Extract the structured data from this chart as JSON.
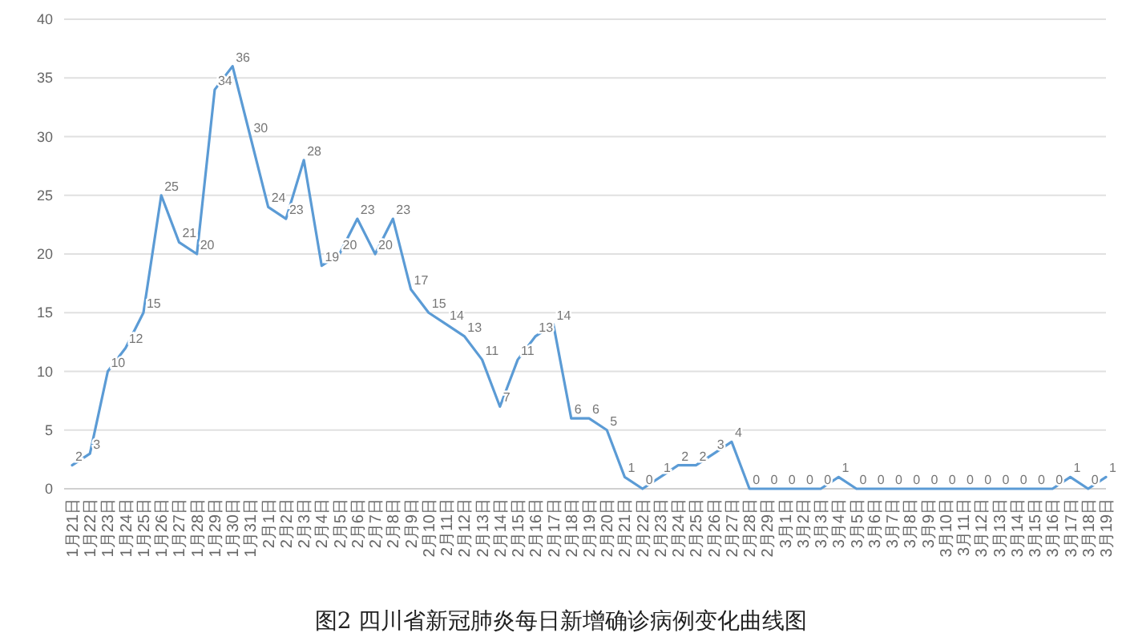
{
  "chart_data": {
    "type": "line",
    "title": "图2 四川省新冠肺炎每日新增确诊病例变化曲线图",
    "categories": [
      "1月21日",
      "1月22日",
      "1月23日",
      "1月24日",
      "1月25日",
      "1月26日",
      "1月27日",
      "1月28日",
      "1月29日",
      "1月30日",
      "1月31日",
      "2月1日",
      "2月2日",
      "2月3日",
      "2月4日",
      "2月5日",
      "2月6日",
      "2月7日",
      "2月8日",
      "2月9日",
      "2月10日",
      "2月11日",
      "2月12日",
      "2月13日",
      "2月14日",
      "2月15日",
      "2月16日",
      "2月17日",
      "2月18日",
      "2月19日",
      "2月20日",
      "2月21日",
      "2月22日",
      "2月23日",
      "2月24日",
      "2月25日",
      "2月26日",
      "2月27日",
      "2月28日",
      "2月29日",
      "3月1日",
      "3月2日",
      "3月3日",
      "3月4日",
      "3月5日",
      "3月6日",
      "3月7日",
      "3月8日",
      "3月9日",
      "3月10日",
      "3月11日",
      "3月12日",
      "3月13日",
      "3月14日",
      "3月15日",
      "3月16日",
      "3月17日",
      "3月18日",
      "3月19日"
    ],
    "series": [
      {
        "color": "#5b9bd5",
        "values": [
          2,
          3,
          10,
          12,
          15,
          25,
          21,
          20,
          34,
          36,
          30,
          24,
          23,
          28,
          19,
          20,
          23,
          20,
          23,
          17,
          15,
          14,
          13,
          11,
          7,
          11,
          13,
          14,
          6,
          6,
          5,
          1,
          0,
          1,
          2,
          2,
          3,
          4,
          0,
          0,
          0,
          0,
          0,
          1,
          0,
          0,
          0,
          0,
          0,
          0,
          0,
          0,
          0,
          0,
          0,
          0,
          1,
          0,
          1
        ]
      }
    ],
    "ylim": [
      0,
      40
    ],
    "yticks": [
      0,
      5,
      10,
      15,
      20,
      25,
      30,
      35,
      40
    ],
    "grid": "y",
    "data_labels": true,
    "marker": "none",
    "line_style": "solid"
  }
}
